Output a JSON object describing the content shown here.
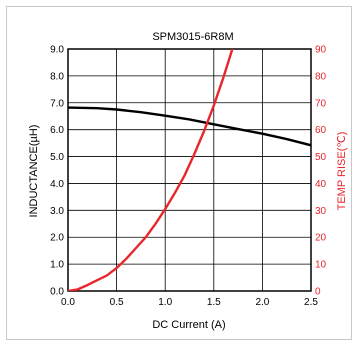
{
  "chart_data": {
    "type": "line",
    "title": "SPM3015-6R8M",
    "xlabel": "DC Current (A)",
    "ylabel_left": "INDUCTANCE(µH)",
    "ylabel_right": "TEMP RISE(℃)",
    "xlim": [
      0,
      2.5
    ],
    "ylim_left": [
      0,
      9
    ],
    "ylim_right": [
      0,
      90
    ],
    "x_ticks": [
      "0.0",
      "0.5",
      "1.0",
      "1.5",
      "2.0",
      "2.5"
    ],
    "y_ticks_left": [
      "0.0",
      "1.0",
      "2.0",
      "3.0",
      "4.0",
      "5.0",
      "6.0",
      "7.0",
      "8.0",
      "9.0"
    ],
    "y_ticks_right": [
      "0",
      "10",
      "20",
      "30",
      "40",
      "50",
      "60",
      "70",
      "80",
      "90"
    ],
    "grid": true,
    "colors": {
      "inductance": "#000000",
      "temp_rise": "#e8262b",
      "right_axis": "#e8262b",
      "grid": "#000000"
    },
    "series": [
      {
        "axis": "left",
        "x": [
          0,
          0.3,
          0.5,
          0.75,
          1.0,
          1.25,
          1.5,
          1.75,
          2.0,
          2.25,
          2.5
        ],
        "values": [
          6.82,
          6.8,
          6.75,
          6.65,
          6.52,
          6.38,
          6.2,
          6.02,
          5.85,
          5.65,
          5.42
        ]
      },
      {
        "axis": "right",
        "x": [
          0,
          0.1,
          0.2,
          0.3,
          0.4,
          0.5,
          0.6,
          0.7,
          0.8,
          0.9,
          1.0,
          1.1,
          1.2,
          1.3,
          1.4,
          1.5,
          1.6,
          1.7
        ],
        "values": [
          0,
          0.6,
          2.2,
          4,
          5.8,
          8.5,
          12,
          16,
          20,
          25,
          30.5,
          36.5,
          43,
          51,
          59.5,
          69,
          79.5,
          91
        ]
      }
    ]
  }
}
